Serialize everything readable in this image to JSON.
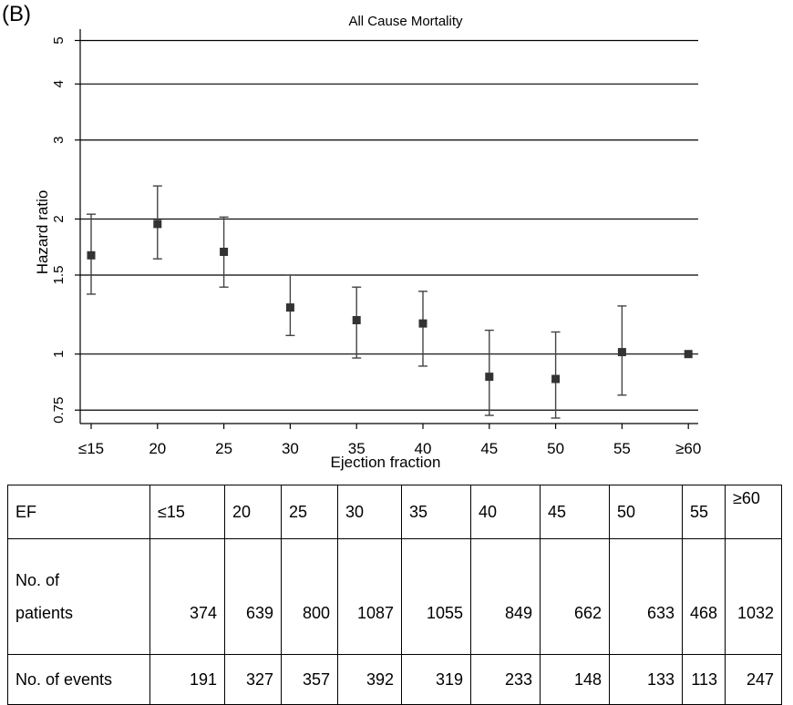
{
  "panel_label": "(B)",
  "chart_data": {
    "type": "scatter",
    "title": "All Cause Mortality",
    "xlabel": "Ejection fraction",
    "ylabel": "Hazard ratio",
    "y_scale": "log",
    "ylim": [
      0.7,
      5.3
    ],
    "y_ticks": [
      0.75,
      1,
      1.5,
      2,
      3,
      4,
      5
    ],
    "y_tick_labels": [
      "0.75",
      "1",
      "1.5",
      "2",
      "3",
      "4",
      "5"
    ],
    "grid": "horizontal",
    "categories": [
      "≤15",
      "20",
      "25",
      "30",
      "35",
      "40",
      "45",
      "50",
      "55",
      "≥60"
    ],
    "series": [
      {
        "estimate": [
          1.66,
          1.95,
          1.69,
          1.27,
          1.19,
          1.17,
          0.89,
          0.88,
          1.01,
          1.0
        ],
        "lower": [
          1.36,
          1.63,
          1.41,
          1.1,
          0.98,
          0.94,
          0.73,
          0.72,
          0.81,
          1.0
        ],
        "upper": [
          2.05,
          2.37,
          2.02,
          1.5,
          1.41,
          1.38,
          1.13,
          1.12,
          1.28,
          1.0
        ]
      }
    ]
  },
  "table": {
    "header": [
      "EF",
      "≤15",
      "20",
      "25",
      "30",
      "35",
      "40",
      "45",
      "50",
      "55",
      "≥60"
    ],
    "patients_label_line1": "No. of",
    "patients_label_line2": "patients",
    "patients": [
      "374",
      "639",
      "800",
      "1087",
      "1055",
      "849",
      "662",
      "633",
      "468",
      "1032"
    ],
    "events_label": "No. of events",
    "events": [
      "191",
      "327",
      "357",
      "392",
      "319",
      "233",
      "148",
      "133",
      "113",
      "247"
    ]
  }
}
